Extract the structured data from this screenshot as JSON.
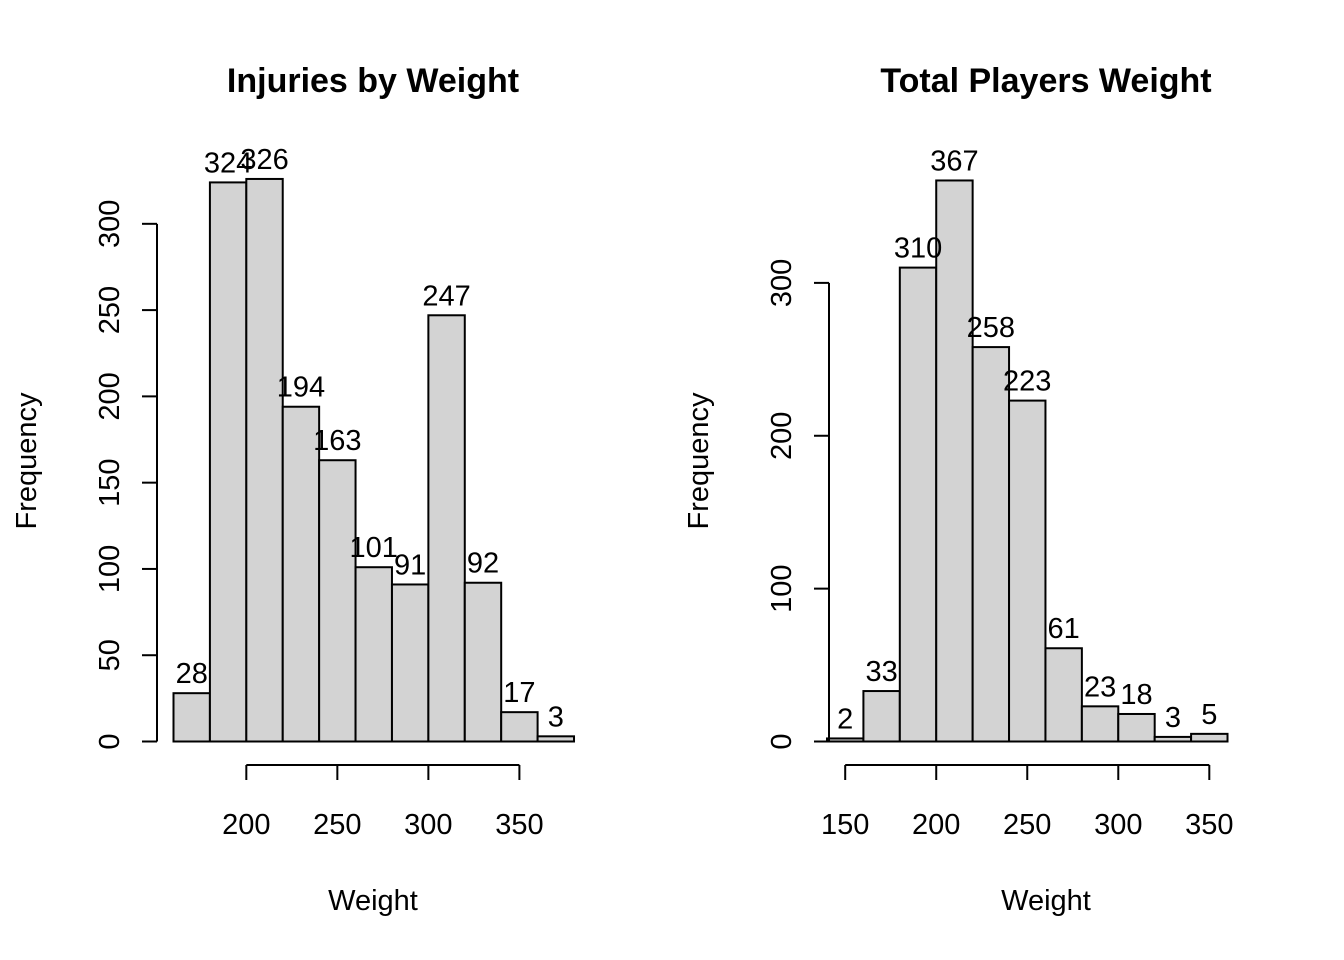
{
  "chart_data": [
    {
      "type": "bar",
      "title": "Injuries by Weight",
      "xlabel": "Weight",
      "ylabel": "Frequency",
      "bin_edges": [
        160,
        180,
        200,
        220,
        240,
        260,
        280,
        300,
        320,
        340,
        360,
        380
      ],
      "values": [
        28,
        324,
        326,
        194,
        163,
        101,
        91,
        247,
        92,
        17,
        3
      ],
      "data_labels": [
        "28",
        "324",
        "326",
        "194",
        "163",
        "101",
        "91",
        "247",
        "92",
        "17",
        "3"
      ],
      "xlim": [
        160,
        380
      ],
      "ylim": [
        0,
        326
      ],
      "xticks": [
        200,
        250,
        300,
        350
      ],
      "xtick_labels": [
        "200",
        "250",
        "300",
        "350"
      ],
      "yticks": [
        0,
        50,
        100,
        150,
        200,
        250,
        300
      ],
      "ytick_labels": [
        "0",
        "50",
        "100",
        "150",
        "200",
        "250",
        "300"
      ],
      "bar_color": "#d3d3d3",
      "grid": false
    },
    {
      "type": "bar",
      "title": "Total Players Weight",
      "xlabel": "Weight",
      "ylabel": "Frequency",
      "bin_edges": [
        140,
        160,
        180,
        200,
        220,
        240,
        260,
        280,
        300,
        320,
        340,
        360
      ],
      "values": [
        2,
        33,
        310,
        367,
        258,
        223,
        61,
        23,
        18,
        3,
        5
      ],
      "data_labels": [
        "2",
        "33",
        "310",
        "367",
        "258",
        "223",
        "61",
        "23",
        "18",
        "3",
        "5"
      ],
      "xlim": [
        140,
        360
      ],
      "ylim": [
        0,
        367
      ],
      "xticks": [
        150,
        200,
        250,
        300,
        350
      ],
      "xtick_labels": [
        "150",
        "200",
        "250",
        "300",
        "350"
      ],
      "yticks": [
        0,
        100,
        200,
        300
      ],
      "ytick_labels": [
        "0",
        "100",
        "200",
        "300"
      ],
      "bar_color": "#d3d3d3",
      "grid": false
    }
  ]
}
